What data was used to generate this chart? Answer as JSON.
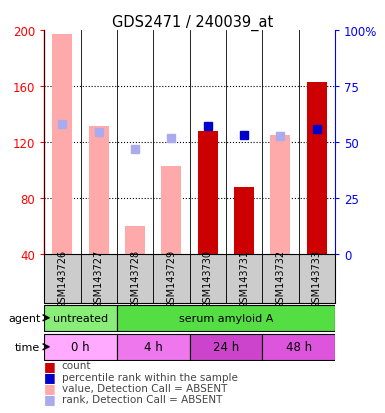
{
  "title": "GDS2471 / 240039_at",
  "samples": [
    "GSM143726",
    "GSM143727",
    "GSM143728",
    "GSM143729",
    "GSM143730",
    "GSM143731",
    "GSM143732",
    "GSM143733"
  ],
  "red_bars": [
    null,
    null,
    null,
    null,
    128,
    88,
    null,
    163
  ],
  "pink_bars": [
    197,
    131,
    60,
    103,
    null,
    null,
    125,
    null
  ],
  "blue_squares": [
    null,
    null,
    null,
    null,
    131,
    125,
    null,
    129
  ],
  "lightblue_squares": [
    133,
    127,
    115,
    123,
    null,
    null,
    124,
    null
  ],
  "ylim_left": [
    40,
    200
  ],
  "ylim_right": [
    0,
    100
  ],
  "yticks_left": [
    40,
    80,
    120,
    160,
    200
  ],
  "yticks_right": [
    0,
    25,
    50,
    75,
    100
  ],
  "ytick_labels_left": [
    "40",
    "80",
    "120",
    "160",
    "200"
  ],
  "ytick_labels_right": [
    "0",
    "25",
    "50",
    "75",
    "100%"
  ],
  "color_red": "#cc0000",
  "color_pink": "#ffaaaa",
  "color_blue": "#0000cc",
  "color_lightblue": "#aaaaee",
  "color_green_light": "#99ee88",
  "color_green_dark": "#55dd44",
  "time_colors": [
    "#ffaaff",
    "#ee77ee",
    "#cc44cc",
    "#dd55dd"
  ],
  "time_labels": [
    "0 h",
    "4 h",
    "24 h",
    "48 h"
  ],
  "time_ranges": [
    [
      0,
      2
    ],
    [
      2,
      4
    ],
    [
      4,
      6
    ],
    [
      6,
      8
    ]
  ],
  "agent_labels": [
    "untreated",
    "serum amyloid A"
  ],
  "agent_ranges": [
    [
      0,
      2
    ],
    [
      2,
      8
    ]
  ],
  "agent_colors": [
    "#88ee77",
    "#55dd44"
  ],
  "legend_items": [
    "count",
    "percentile rank within the sample",
    "value, Detection Call = ABSENT",
    "rank, Detection Call = ABSENT"
  ],
  "legend_colors": [
    "#cc0000",
    "#0000cc",
    "#ffaaaa",
    "#aaaaee"
  ]
}
